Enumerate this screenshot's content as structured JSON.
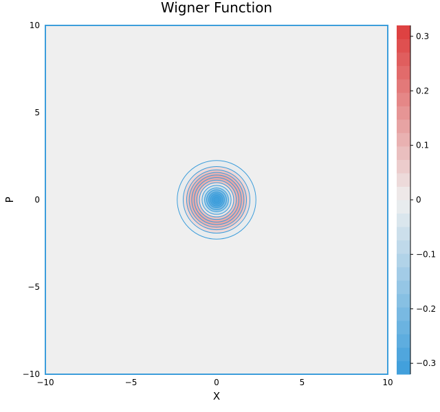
{
  "chart_data": {
    "type": "contour",
    "title": "Wigner Function",
    "xlabel": "X",
    "ylabel": "P",
    "xlim": [
      -10,
      10
    ],
    "ylim": [
      -10,
      10
    ],
    "xticks": [
      -10,
      -5,
      0,
      5,
      10
    ],
    "yticks": [
      -10,
      -5,
      0,
      5,
      10
    ],
    "xtick_labels": [
      "−10",
      "−5",
      "0",
      "5",
      "10"
    ],
    "ytick_labels": [
      "−10",
      "−5",
      "0",
      "5",
      "10"
    ],
    "grid": false,
    "background_value": 0,
    "colorbar": {
      "range": [
        -0.32,
        0.32
      ],
      "ticks": [
        -0.3,
        -0.2,
        -0.1,
        0,
        0.1,
        0.2,
        0.3
      ],
      "tick_labels": [
        "−0.3",
        "−0.2",
        "−0.1",
        "0",
        "0.1",
        "0.2",
        "0.3"
      ],
      "levels": 26,
      "colormap": {
        "low": "#3b9ddb",
        "mid": "#efefef",
        "high": "#dd3b3b"
      }
    },
    "contours": {
      "center": [
        0,
        0
      ],
      "rings": [
        {
          "r": 2.3,
          "value": -0.01
        },
        {
          "r": 1.95,
          "value": 0.04
        },
        {
          "r": 1.75,
          "value": 0.08
        },
        {
          "r": 1.6,
          "value": 0.11
        },
        {
          "r": 1.45,
          "value": 0.13
        },
        {
          "r": 1.3,
          "value": 0.12
        },
        {
          "r": 1.15,
          "value": 0.08
        },
        {
          "r": 1.0,
          "value": 0.02
        },
        {
          "r": 0.85,
          "value": -0.06
        },
        {
          "r": 0.7,
          "value": -0.14
        },
        {
          "r": 0.58,
          "value": -0.2
        },
        {
          "r": 0.46,
          "value": -0.25
        },
        {
          "r": 0.36,
          "value": -0.28
        },
        {
          "r": 0.26,
          "value": -0.3
        },
        {
          "r": 0.16,
          "value": -0.31
        }
      ],
      "line_color": "#3b9ddb"
    }
  }
}
